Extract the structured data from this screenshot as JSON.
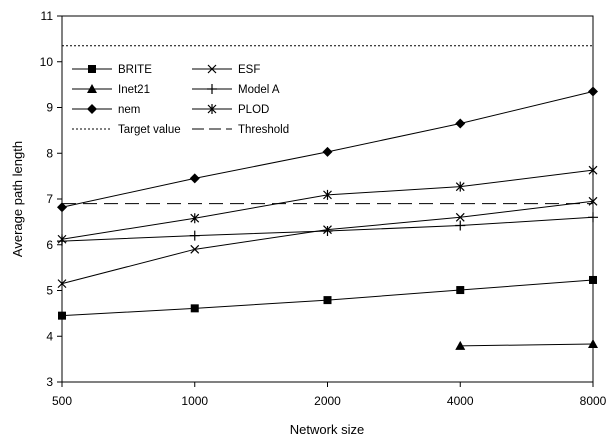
{
  "chart_data": {
    "type": "line",
    "title": "",
    "xlabel": "Network size",
    "ylabel": "Average path length",
    "categories": [
      "500",
      "1000",
      "2000",
      "4000",
      "8000"
    ],
    "ylim": [
      3,
      11
    ],
    "yticks": [
      3,
      4,
      5,
      6,
      7,
      8,
      9,
      10,
      11
    ],
    "grid": false,
    "legend_position": "top-left",
    "series": [
      {
        "name": "BRITE",
        "marker": "square",
        "dash": "solid",
        "values": [
          4.45,
          4.61,
          4.79,
          5.01,
          5.23
        ]
      },
      {
        "name": "ESF",
        "marker": "x",
        "dash": "solid",
        "values": [
          5.15,
          5.9,
          6.33,
          6.6,
          6.95
        ]
      },
      {
        "name": "Inet21",
        "marker": "triangle",
        "dash": "solid",
        "values": [
          null,
          null,
          null,
          3.79,
          3.83
        ]
      },
      {
        "name": "Model A",
        "marker": "plus",
        "dash": "solid",
        "values": [
          6.08,
          6.2,
          6.3,
          6.42,
          6.6
        ]
      },
      {
        "name": "nem",
        "marker": "diamond",
        "dash": "solid",
        "values": [
          6.82,
          7.45,
          8.03,
          8.65,
          9.35
        ]
      },
      {
        "name": "PLOD",
        "marker": "asterisk",
        "dash": "solid",
        "values": [
          6.12,
          6.58,
          7.09,
          7.27,
          7.63
        ]
      },
      {
        "name": "Target value",
        "marker": "none",
        "dash": "dotted",
        "values": [
          10.35,
          10.35,
          10.35,
          10.35,
          10.35
        ]
      },
      {
        "name": "Threshold",
        "marker": "none",
        "dash": "dashed",
        "values": [
          6.9,
          6.9,
          6.9,
          6.9,
          6.9
        ]
      }
    ]
  }
}
